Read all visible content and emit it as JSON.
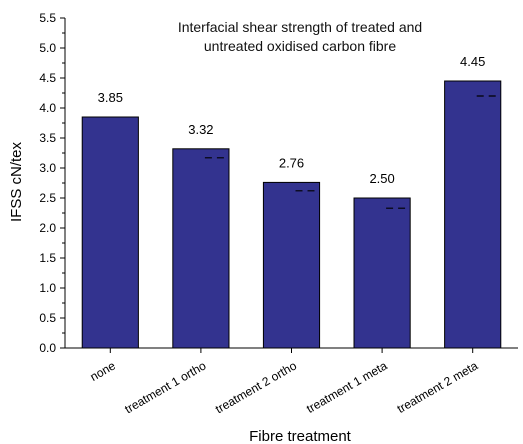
{
  "chart_data": {
    "type": "bar",
    "title_lines": [
      "Interfacial shear strength of treated and",
      "untreated oxidised carbon fibre"
    ],
    "xlabel": "Fibre treatment",
    "ylabel": "IFSS cN/tex",
    "categories": [
      "none",
      "treatment 1 ortho",
      "treatment 2 ortho",
      "treatment 1 meta",
      "treatment 2 meta"
    ],
    "values": [
      3.85,
      3.32,
      2.76,
      2.5,
      4.45
    ],
    "value_labels": [
      "3.85",
      "3.32",
      "2.76",
      "2.50",
      "4.45"
    ],
    "dashed_reference": [
      null,
      3.17,
      2.62,
      2.33,
      4.2
    ],
    "ylim": [
      0,
      5.5
    ],
    "yticks": [
      "0.0",
      "0.5",
      "1.0",
      "1.5",
      "2.0",
      "2.5",
      "3.0",
      "3.5",
      "4.0",
      "4.5",
      "5.0",
      "5.5"
    ],
    "bar_color": "#33338f",
    "grid": false,
    "legend": "none"
  }
}
